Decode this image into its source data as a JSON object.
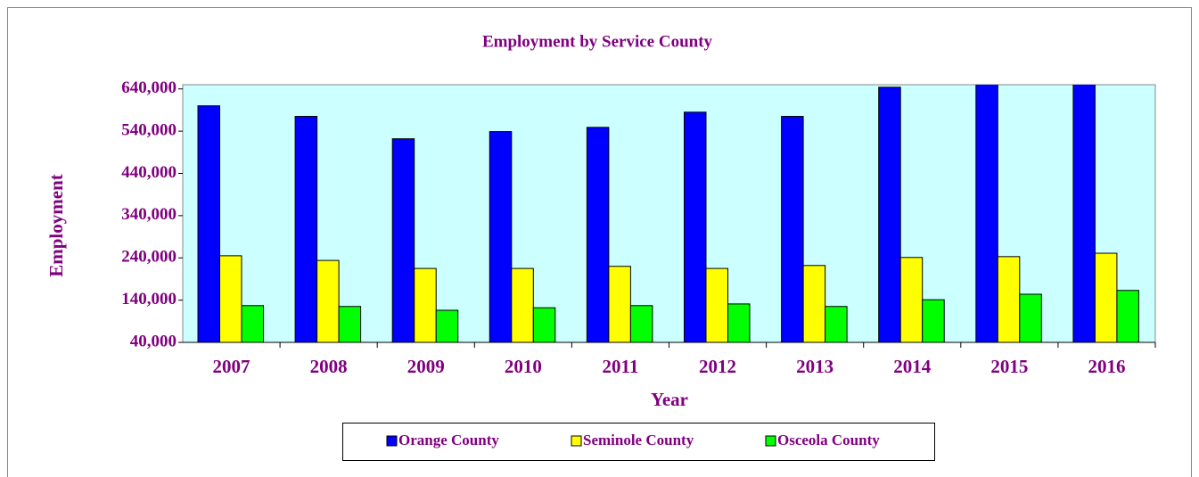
{
  "chart_data": {
    "type": "bar",
    "title": "Employment by Service County",
    "xlabel": "Year",
    "ylabel": "Employment",
    "categories": [
      "2007",
      "2008",
      "2009",
      "2010",
      "2011",
      "2012",
      "2013",
      "2014",
      "2015",
      "2016"
    ],
    "series": [
      {
        "name": "Orange County",
        "color": "#0000ff",
        "values": [
          600000,
          575000,
          522000,
          539000,
          549000,
          585000,
          575000,
          644000,
          670000,
          680000
        ]
      },
      {
        "name": "Seminole County",
        "color": "#ffff00",
        "values": [
          245000,
          234000,
          215000,
          215000,
          220000,
          215000,
          222000,
          241000,
          243000,
          251000
        ]
      },
      {
        "name": "Osceola County",
        "color": "#00ff00",
        "values": [
          127000,
          125000,
          116000,
          122000,
          127000,
          131000,
          125000,
          141000,
          154000,
          163000
        ]
      }
    ],
    "ylim": [
      40000,
      650000
    ],
    "yticks": [
      {
        "value": 40000,
        "label": "40,000"
      },
      {
        "value": 140000,
        "label": "140,000"
      },
      {
        "value": 240000,
        "label": "240,000"
      },
      {
        "value": 340000,
        "label": "340,000"
      },
      {
        "value": 440000,
        "label": "440,000"
      },
      {
        "value": 540000,
        "label": "540,000"
      },
      {
        "value": 640000,
        "label": "640,000"
      }
    ],
    "plot_background": "#ccffff",
    "legend": "bottom"
  }
}
